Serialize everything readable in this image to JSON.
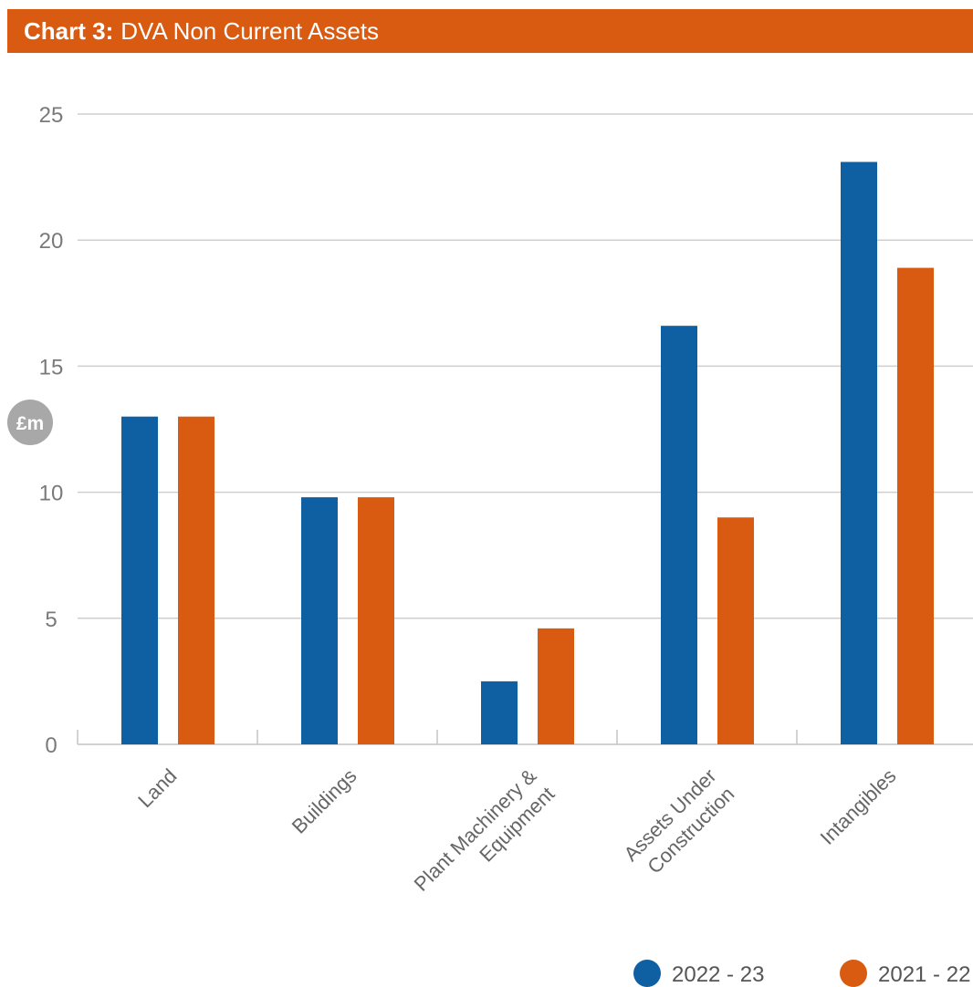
{
  "header": {
    "prefix": "Chart 3:",
    "title": "DVA Non Current Assets"
  },
  "colors": {
    "series_2022_23": "#0f5fa3",
    "series_2021_22": "#d95a11",
    "title_bar": "#d95a11",
    "grid": "#cfcfcf",
    "unit_badge": "#a8a8a8"
  },
  "chart_data": {
    "type": "bar",
    "title": "DVA Non Current Assets",
    "ylabel": "£m",
    "ylim": [
      0,
      25
    ],
    "yticks": [
      0,
      5,
      10,
      15,
      20,
      25
    ],
    "grid": true,
    "legend": "bottom-right",
    "categories": [
      [
        "Land"
      ],
      [
        "Buildings"
      ],
      [
        "Plant Machinery &",
        "Equipment"
      ],
      [
        "Assets Under",
        "Construction"
      ],
      [
        "Intangibles"
      ]
    ],
    "series": [
      {
        "name": "2022 - 23",
        "color": "#0f5fa3",
        "values": [
          13.0,
          9.8,
          2.5,
          16.6,
          23.1
        ]
      },
      {
        "name": "2021 - 22",
        "color": "#d95a11",
        "values": [
          13.0,
          9.8,
          4.6,
          9.0,
          18.9
        ]
      }
    ]
  }
}
